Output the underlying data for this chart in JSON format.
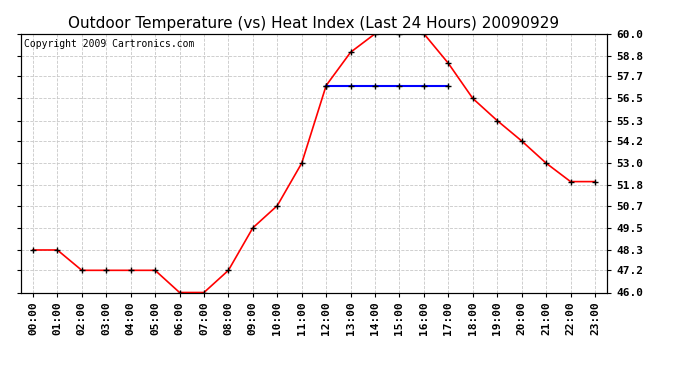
{
  "title": "Outdoor Temperature (vs) Heat Index (Last 24 Hours) 20090929",
  "copyright": "Copyright 2009 Cartronics.com",
  "xlabels": [
    "00:00",
    "01:00",
    "02:00",
    "03:00",
    "04:00",
    "05:00",
    "06:00",
    "07:00",
    "08:00",
    "09:00",
    "10:00",
    "11:00",
    "12:00",
    "13:00",
    "14:00",
    "15:00",
    "16:00",
    "17:00",
    "18:00",
    "19:00",
    "20:00",
    "21:00",
    "22:00",
    "23:00"
  ],
  "temp_data": [
    48.3,
    48.3,
    47.2,
    47.2,
    47.2,
    47.2,
    46.0,
    46.0,
    47.2,
    49.5,
    50.7,
    53.0,
    57.2,
    59.0,
    60.0,
    60.0,
    60.0,
    58.4,
    56.5,
    55.3,
    54.2,
    53.0,
    52.0,
    52.0
  ],
  "heat_index_data": [
    null,
    null,
    null,
    null,
    null,
    null,
    null,
    null,
    null,
    null,
    null,
    null,
    57.2,
    57.2,
    57.2,
    57.2,
    57.2,
    57.2,
    null,
    null,
    null,
    null,
    null,
    null
  ],
  "temp_color": "#FF0000",
  "heat_color": "#0000FF",
  "ylim": [
    46.0,
    60.0
  ],
  "yticks": [
    46.0,
    47.2,
    48.3,
    49.5,
    50.7,
    51.8,
    53.0,
    54.2,
    55.3,
    56.5,
    57.7,
    58.8,
    60.0
  ],
  "background_color": "#FFFFFF",
  "grid_color": "#C8C8C8",
  "title_fontsize": 11,
  "copyright_fontsize": 7,
  "tick_fontsize": 8
}
